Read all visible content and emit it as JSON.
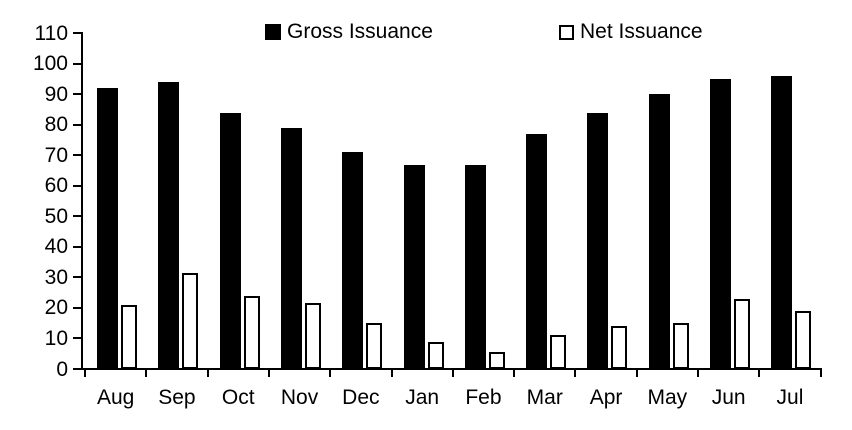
{
  "chart_data": {
    "type": "bar",
    "title": "",
    "categories": [
      "Aug",
      "Sep",
      "Oct",
      "Nov",
      "Dec",
      "Jan",
      "Feb",
      "Mar",
      "Apr",
      "May",
      "Jun",
      "Jul"
    ],
    "series": [
      {
        "name": "Gross Issuance",
        "style": "filled",
        "color": "#000000",
        "values": [
          92,
          94,
          84,
          79,
          71,
          67,
          67,
          77,
          84,
          90,
          95,
          96
        ]
      },
      {
        "name": "Net Issuance",
        "style": "outlined",
        "color": "#ffffff",
        "border_color": "#000000",
        "values": [
          21,
          31.5,
          24,
          21.5,
          15,
          9,
          5.5,
          11,
          14,
          15,
          23,
          19
        ]
      }
    ],
    "y_axis": {
      "min": 0,
      "max": 110,
      "tick_step": 10,
      "ticks": [
        0,
        10,
        20,
        30,
        40,
        50,
        60,
        70,
        80,
        90,
        100,
        110
      ]
    },
    "x_axis": {
      "label": ""
    },
    "legend_position": "top",
    "grid": false,
    "axis_color": "#000000",
    "background_color": "#ffffff"
  }
}
